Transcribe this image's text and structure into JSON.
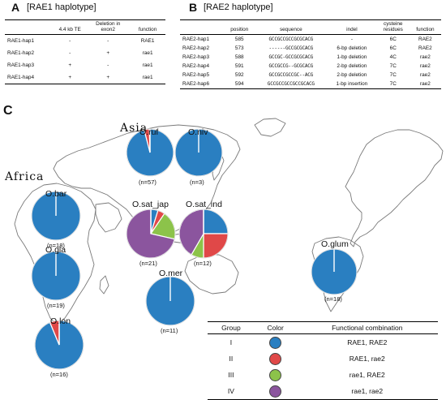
{
  "panelA": {
    "letter": "A",
    "title": "[RAE1 haplotype]",
    "headers": [
      "",
      "4.4 kb TE",
      "Deletion in exon2",
      "function"
    ],
    "rows": [
      [
        "RAE1-hap1",
        "-",
        "-",
        "RAE1"
      ],
      [
        "RAE1-hap2",
        "-",
        "+",
        "rae1"
      ],
      [
        "RAE1-hap3",
        "+",
        "-",
        "rae1"
      ],
      [
        "RAE1-hap4",
        "+",
        "+",
        "rae1"
      ]
    ]
  },
  "panelB": {
    "letter": "B",
    "title": "[RAE2 haplotype]",
    "headers": [
      "",
      "position",
      "sequence",
      "indel",
      "cysteine residues",
      "function"
    ],
    "rows": [
      [
        "RAE2-hap1",
        "585",
        "GCCGCCGCCGCGCACG",
        "-",
        "6C",
        "RAE2"
      ],
      [
        "RAE2-hap2",
        "573",
        "------GCCGCGCACG",
        "6-bp deletion",
        "6C",
        "RAE2"
      ],
      [
        "RAE2-hap3",
        "588",
        "GCCGC-GCCGCGCACG",
        "1-bp deletion",
        "4C",
        "rae2"
      ],
      [
        "RAE2-hap4",
        "591",
        "GCCGCCG--GCGCACG",
        "2-bp deletion",
        "7C",
        "rae2"
      ],
      [
        "RAE2-hap5",
        "592",
        "GCCGCCGCCGC--ACG",
        "2-bp deletion",
        "7C",
        "rae2"
      ],
      [
        "RAE2-hap6",
        "594",
        "GCCGCCGCCGCCGCACG",
        "1-bp insertion",
        "7C",
        "rae2"
      ]
    ]
  },
  "panelC": {
    "letter": "C",
    "regions": {
      "asia": "Asia",
      "africa": "Africa"
    },
    "colors": {
      "I": "#2a7fc1",
      "II": "#e04848",
      "III": "#8cc34a",
      "IV": "#8b559e"
    },
    "species": [
      {
        "key": "ruf",
        "label": "O.ruf",
        "count": "(n=57)",
        "fractions": {
          "I": 0.96,
          "II": 0.035,
          "III": 0,
          "IV": 0
        }
      },
      {
        "key": "niv",
        "label": "O.niv",
        "count": "(n=3)",
        "fractions": {
          "I": 1,
          "II": 0,
          "III": 0,
          "IV": 0
        }
      },
      {
        "key": "bar",
        "label": "O.bar",
        "count": "(n=18)",
        "fractions": {
          "I": 1,
          "II": 0,
          "III": 0,
          "IV": 0
        }
      },
      {
        "key": "sat_jap",
        "label": "O.sat_jap",
        "count": "(n=21)",
        "fractions": {
          "I": 0.0476,
          "II": 0.0476,
          "III": 0.1905,
          "IV": 0.7143
        }
      },
      {
        "key": "sat_ind",
        "label": "O.sat_ind",
        "count": "(n=12)",
        "fractions": {
          "I": 0.25,
          "II": 0.25,
          "III": 0.0833,
          "IV": 0.4167
        }
      },
      {
        "key": "gla",
        "label": "O.gla",
        "count": "(n=19)",
        "fractions": {
          "I": 1,
          "II": 0,
          "III": 0,
          "IV": 0
        }
      },
      {
        "key": "mer",
        "label": "O.mer",
        "count": "(n=11)",
        "fractions": {
          "I": 1,
          "II": 0,
          "III": 0,
          "IV": 0
        }
      },
      {
        "key": "glum",
        "label": "O.glum",
        "count": "(n=18)",
        "fractions": {
          "I": 1,
          "II": 0,
          "III": 0,
          "IV": 0
        }
      },
      {
        "key": "lon",
        "label": "O.lon",
        "count": "(n=16)",
        "fractions": {
          "I": 0.9375,
          "II": 0.0625,
          "III": 0,
          "IV": 0
        }
      }
    ],
    "legend": {
      "headers": [
        "Group",
        "Color",
        "Functional combination"
      ],
      "rows": [
        {
          "group": "I",
          "combination": "RAE1, RAE2",
          "color": "#2a7fc1"
        },
        {
          "group": "II",
          "combination": "RAE1, rae2",
          "color": "#e04848"
        },
        {
          "group": "III",
          "combination": "rae1, RAE2",
          "color": "#8cc34a"
        },
        {
          "group": "IV",
          "combination": "rae1, rae2",
          "color": "#8b559e"
        }
      ]
    }
  }
}
